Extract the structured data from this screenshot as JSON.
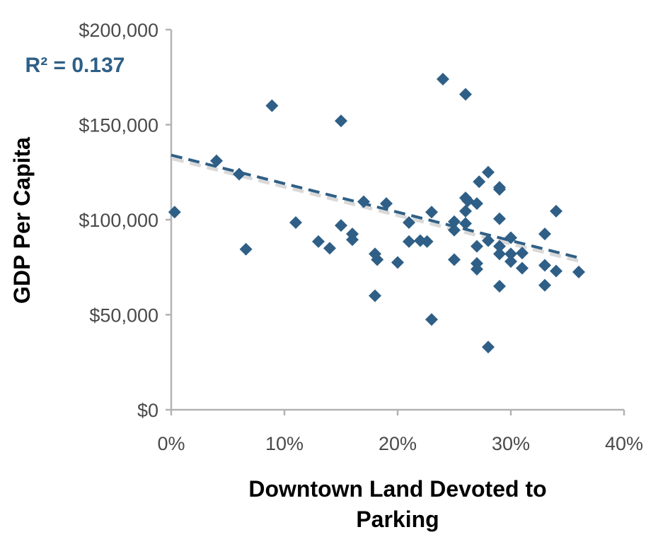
{
  "chart_data": {
    "type": "scatter",
    "title": "",
    "xlabel_lines": [
      "Downtown Land Devoted to",
      "Parking"
    ],
    "ylabel": "GDP Per Capita",
    "annotation": "R² = 0.137",
    "xlim": [
      0,
      0.4
    ],
    "ylim": [
      0,
      200000
    ],
    "x_ticks": [
      0,
      0.1,
      0.2,
      0.3,
      0.4
    ],
    "x_tick_labels": [
      "0%",
      "10%",
      "20%",
      "30%",
      "40%"
    ],
    "y_ticks": [
      0,
      50000,
      100000,
      150000,
      200000
    ],
    "y_tick_labels": [
      "$0",
      "$50,000",
      "$100,000",
      "$150,000",
      "$200,000"
    ],
    "grid": false,
    "marker": "diamond",
    "marker_color": "#2f5f86",
    "trendline": {
      "style": "dashed",
      "color": "#2f5f86",
      "x": [
        0,
        0.36
      ],
      "y": [
        134000,
        80000
      ]
    },
    "points": [
      [
        0.003,
        104000
      ],
      [
        0.04,
        131000
      ],
      [
        0.06,
        124000
      ],
      [
        0.066,
        84500
      ],
      [
        0.089,
        160000
      ],
      [
        0.11,
        98500
      ],
      [
        0.13,
        88500
      ],
      [
        0.14,
        85000
      ],
      [
        0.15,
        152000
      ],
      [
        0.15,
        97000
      ],
      [
        0.16,
        92500
      ],
      [
        0.16,
        89500
      ],
      [
        0.17,
        109500
      ],
      [
        0.18,
        82000
      ],
      [
        0.182,
        79000
      ],
      [
        0.18,
        60000
      ],
      [
        0.19,
        108500
      ],
      [
        0.2,
        77500
      ],
      [
        0.21,
        98500
      ],
      [
        0.21,
        88500
      ],
      [
        0.22,
        89000
      ],
      [
        0.226,
        88500
      ],
      [
        0.23,
        104000
      ],
      [
        0.23,
        47500
      ],
      [
        0.24,
        174000
      ],
      [
        0.25,
        99000
      ],
      [
        0.25,
        94500
      ],
      [
        0.25,
        79000
      ],
      [
        0.26,
        166000
      ],
      [
        0.26,
        111500
      ],
      [
        0.262,
        110000
      ],
      [
        0.26,
        104500
      ],
      [
        0.26,
        98000
      ],
      [
        0.27,
        108500
      ],
      [
        0.272,
        120000
      ],
      [
        0.27,
        86000
      ],
      [
        0.27,
        77000
      ],
      [
        0.27,
        74000
      ],
      [
        0.28,
        125000
      ],
      [
        0.28,
        89000
      ],
      [
        0.28,
        33000
      ],
      [
        0.29,
        117000
      ],
      [
        0.29,
        116000
      ],
      [
        0.29,
        100500
      ],
      [
        0.29,
        86000
      ],
      [
        0.29,
        82000
      ],
      [
        0.29,
        65000
      ],
      [
        0.3,
        90500
      ],
      [
        0.3,
        82000
      ],
      [
        0.3,
        78000
      ],
      [
        0.31,
        82500
      ],
      [
        0.31,
        74500
      ],
      [
        0.33,
        92500
      ],
      [
        0.33,
        76000
      ],
      [
        0.33,
        65500
      ],
      [
        0.34,
        104500
      ],
      [
        0.34,
        73000
      ],
      [
        0.36,
        72500
      ]
    ]
  }
}
